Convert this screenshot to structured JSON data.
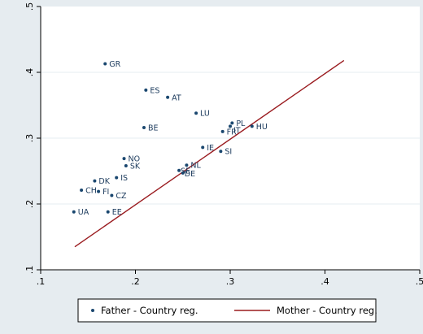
{
  "chart_data": {
    "type": "scatter",
    "title": "",
    "xlabel": "",
    "ylabel": "",
    "xlim": [
      0.1,
      0.5
    ],
    "ylim": [
      0.1,
      0.5
    ],
    "x_ticks": [
      ".1",
      ".2",
      ".3",
      ".4",
      ".5"
    ],
    "y_ticks": [
      ".1",
      ".2",
      ".3",
      ".4",
      ".5"
    ],
    "grid": "horizontal",
    "legend_position": "bottom",
    "series": [
      {
        "name": "Father - Country reg.",
        "kind": "scatter",
        "color": "#1a476f",
        "points": [
          {
            "label": "GR",
            "x": 0.168,
            "y": 0.413
          },
          {
            "label": "ES",
            "x": 0.211,
            "y": 0.373
          },
          {
            "label": "AT",
            "x": 0.234,
            "y": 0.362
          },
          {
            "label": "LU",
            "x": 0.264,
            "y": 0.338
          },
          {
            "label": "PL",
            "x": 0.302,
            "y": 0.323
          },
          {
            "label": "IT",
            "x": 0.3,
            "y": 0.318
          },
          {
            "label": "HU",
            "x": 0.323,
            "y": 0.318
          },
          {
            "label": "FR",
            "x": 0.292,
            "y": 0.31
          },
          {
            "label": "BE",
            "x": 0.209,
            "y": 0.316
          },
          {
            "label": "IE",
            "x": 0.271,
            "y": 0.286
          },
          {
            "label": "SI",
            "x": 0.29,
            "y": 0.28
          },
          {
            "label": "NO",
            "x": 0.188,
            "y": 0.269
          },
          {
            "label": "SK",
            "x": 0.19,
            "y": 0.258
          },
          {
            "label": "NL",
            "x": 0.254,
            "y": 0.259
          },
          {
            "label": "SE",
            "x": 0.246,
            "y": 0.251
          },
          {
            "label": "DE",
            "x": 0.25,
            "y": 0.247
          },
          {
            "label": "IS",
            "x": 0.18,
            "y": 0.24
          },
          {
            "label": "DK",
            "x": 0.157,
            "y": 0.235
          },
          {
            "label": "CH",
            "x": 0.143,
            "y": 0.221
          },
          {
            "label": "FI",
            "x": 0.161,
            "y": 0.219
          },
          {
            "label": "CZ",
            "x": 0.175,
            "y": 0.213
          },
          {
            "label": "UA",
            "x": 0.135,
            "y": 0.188
          },
          {
            "label": "EE",
            "x": 0.171,
            "y": 0.188
          }
        ],
        "marker": "dot"
      },
      {
        "name": "Mother - Country reg.",
        "kind": "line",
        "color": "#9a1b1f",
        "x": [
          0.136,
          0.42
        ],
        "y": [
          0.135,
          0.418
        ]
      }
    ],
    "label_offsets": {
      "IT": "left-below",
      "SE": "tight",
      "DE": "tight"
    }
  },
  "colors": {
    "background": "#e6ecf0",
    "plot_background": "#ffffff",
    "grid": "#e6ecf0",
    "axis": "#000000"
  }
}
